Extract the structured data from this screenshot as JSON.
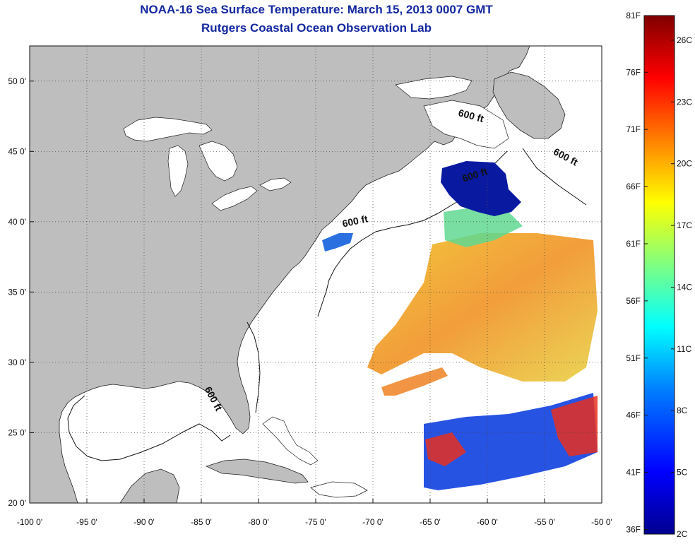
{
  "title_line1": "NOAA-16 Sea Surface Temperature:  March 15, 2013 0007 GMT",
  "title_line2": "Rutgers Coastal Ocean Observation Lab",
  "map": {
    "lon_range": [
      -100,
      -50
    ],
    "lat_range": [
      20,
      52.5
    ],
    "x_ticks": [
      {
        "value": -100,
        "label": "-100 0'"
      },
      {
        "value": -95,
        "label": "-95 0'"
      },
      {
        "value": -90,
        "label": "-90 0'"
      },
      {
        "value": -85,
        "label": "-85 0'"
      },
      {
        "value": -80,
        "label": "-80 0'"
      },
      {
        "value": -75,
        "label": "-75 0'"
      },
      {
        "value": -70,
        "label": "-70 0'"
      },
      {
        "value": -65,
        "label": "-65 0'"
      },
      {
        "value": -60,
        "label": "-60 0'"
      },
      {
        "value": -55,
        "label": "-55 0'"
      },
      {
        "value": -50,
        "label": "-50 0'"
      }
    ],
    "y_ticks": [
      {
        "value": 20,
        "label": "20 0'"
      },
      {
        "value": 25,
        "label": "25 0'"
      },
      {
        "value": 30,
        "label": "30 0'"
      },
      {
        "value": 35,
        "label": "35 0'"
      },
      {
        "value": 40,
        "label": "40 0'"
      },
      {
        "value": 45,
        "label": "45 0'"
      },
      {
        "value": 50,
        "label": "50 0'"
      }
    ],
    "grid": "dotted",
    "land_color": "#bebebe",
    "isobath_labels": [
      {
        "text": "600 ft",
        "lon": -61.5,
        "lat": 47.3,
        "rotate": 15
      },
      {
        "text": "600 ft",
        "lon": -53.3,
        "lat": 44.4,
        "rotate": 28
      },
      {
        "text": "600 ft",
        "lon": -61.0,
        "lat": 43.1,
        "rotate": -18
      },
      {
        "text": "600 ft",
        "lon": -71.5,
        "lat": 39.8,
        "rotate": -12
      },
      {
        "text": "600 ft",
        "lon": -84.2,
        "lat": 27.3,
        "rotate": 62
      }
    ]
  },
  "colorbar": {
    "left_labels": [
      "81F",
      "76F",
      "71F",
      "66F",
      "61F",
      "56F",
      "51F",
      "46F",
      "41F",
      "36F"
    ],
    "left_values_f": [
      81,
      76,
      71,
      66,
      61,
      56,
      51,
      46,
      41,
      36
    ],
    "right_labels": [
      "26C",
      "23C",
      "20C",
      "17C",
      "14C",
      "11C",
      "8C",
      "5C",
      "2C"
    ],
    "right_values_c": [
      26,
      23,
      20,
      17,
      14,
      11,
      8,
      5,
      2
    ],
    "range_c": [
      2,
      27.2
    ],
    "colormap": [
      "#00008f",
      "#0000ff",
      "#0080ff",
      "#00ffff",
      "#80ff80",
      "#ffff00",
      "#ff8000",
      "#ff0000",
      "#800000"
    ]
  }
}
